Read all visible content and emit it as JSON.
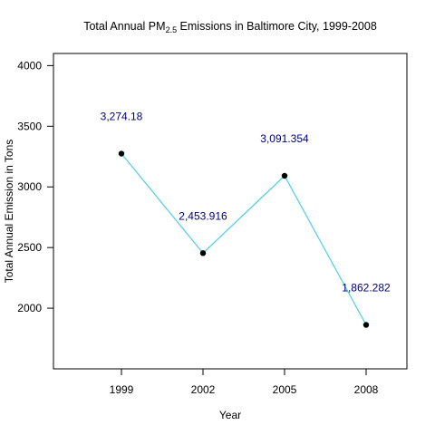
{
  "chart_data": {
    "type": "line",
    "title": {
      "prefix": "Total Annual PM",
      "subscript": "2.5",
      "suffix": " Emissions in Baltimore City, 1999-2008"
    },
    "xlabel": "Year",
    "ylabel": "Total Annual Emission in Tons",
    "x": [
      1999,
      2002,
      2005,
      2008
    ],
    "x_tick_labels": [
      "1999",
      "2002",
      "2005",
      "2008"
    ],
    "xlim": [
      1996.5,
      2009.5
    ],
    "y": [
      3274.18,
      2453.916,
      3091.354,
      1862.282
    ],
    "data_labels": [
      "3,274.18",
      "2,453.916",
      "3,091.354",
      "1,862.282"
    ],
    "y_ticks": [
      2000,
      2500,
      3000,
      3500,
      4000
    ],
    "y_tick_labels": [
      "2000",
      "2500",
      "3000",
      "3500",
      "4000"
    ],
    "ylim": [
      1500,
      4100
    ],
    "grid": false,
    "colors": {
      "line": "#4dd0e1",
      "point": "#000000",
      "data_label": "#00007f"
    }
  }
}
